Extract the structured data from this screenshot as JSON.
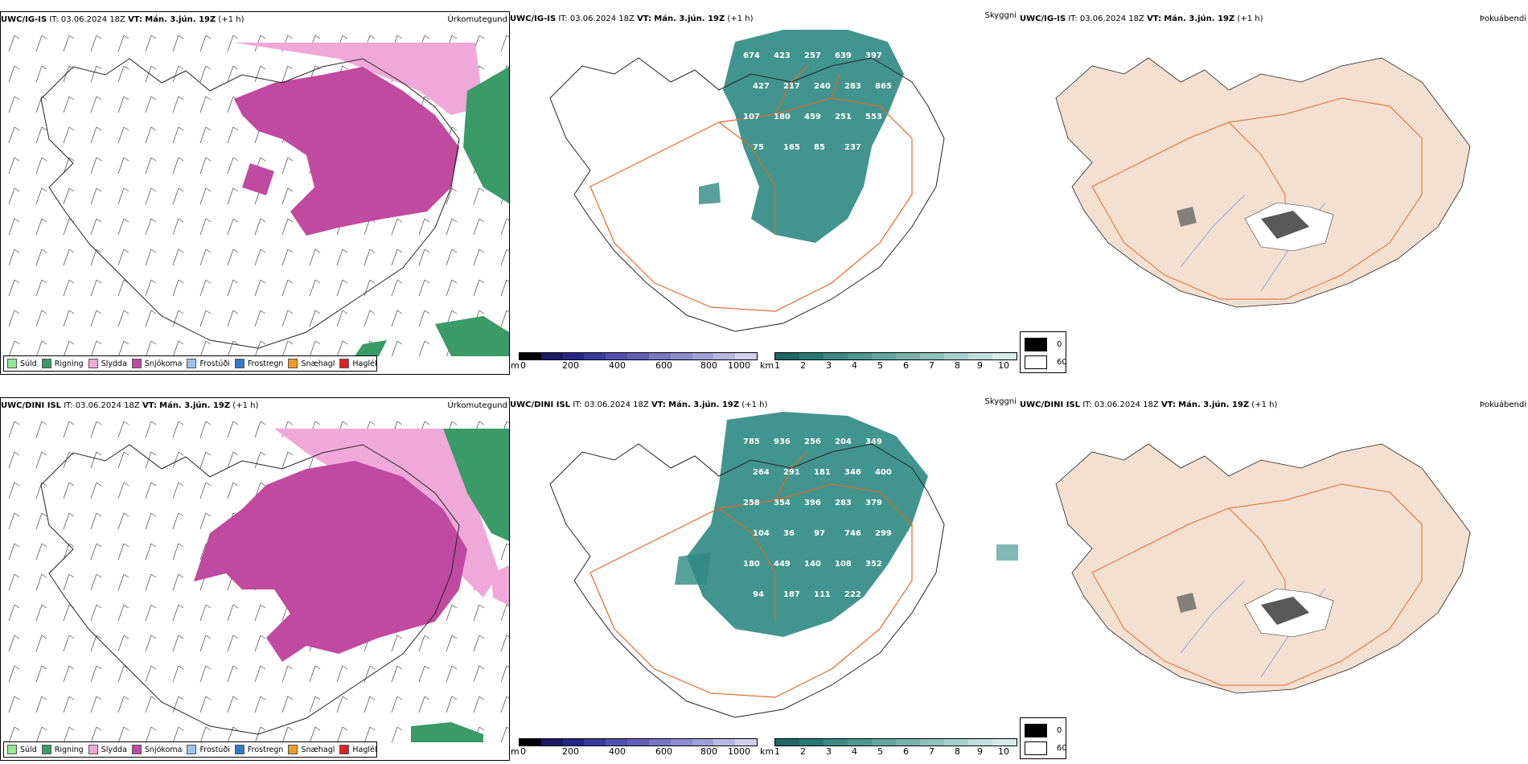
{
  "colors": {
    "snow": "#c04aa0",
    "sleet": "#f0a8d8",
    "rain": "#3a9a68",
    "drizzle": "#90e890",
    "freezing_drizzle": "#9ac4f0",
    "freezing_rain": "#3478c8",
    "snow_grains": "#f09820",
    "hail": "#e02020",
    "cloud": "#2e8a82",
    "land": "#f3e0d0",
    "roads": "#e06a2a",
    "rivers": "#7a9ae0"
  },
  "rows": [
    {
      "model": "UWC/IG-IS",
      "it_label": "IT:",
      "it_value": "03.06.2024 18Z",
      "vt_label": "VT:",
      "vt_value": "Mán. 3.jún. 19Z",
      "lead": "(+1 h)",
      "panels": {
        "precip": {
          "title": "Úrkomutegund"
        },
        "visibility": {
          "title": "Skyggni",
          "labels": [
            "674",
            "423",
            "257",
            "639",
            "397",
            "427",
            "217",
            "240",
            "283",
            "865",
            "107",
            "180",
            "459",
            "251",
            "553",
            "75",
            "165",
            "85",
            "237"
          ]
        },
        "cloud": {
          "title": "Þokuábendi"
        }
      }
    },
    {
      "model": "UWC/DINI ISL",
      "it_label": "IT:",
      "it_value": "03.06.2024 18Z",
      "vt_label": "VT:",
      "vt_value": "Mán. 3.jún. 19Z",
      "lead": "(+1 h)",
      "panels": {
        "precip": {
          "title": "Úrkomutegund"
        },
        "visibility": {
          "title": "Skyggni",
          "labels": [
            "785",
            "936",
            "256",
            "204",
            "349",
            "264",
            "291",
            "181",
            "346",
            "400",
            "258",
            "354",
            "396",
            "283",
            "379",
            "104",
            "36",
            "97",
            "746",
            "299",
            "180",
            "449",
            "140",
            "108",
            "352",
            "94",
            "187",
            "111",
            "222"
          ]
        },
        "cloud": {
          "title": "Þokuábendi"
        }
      }
    }
  ],
  "precip_legend": [
    {
      "label": "Súld",
      "color": "#90e890"
    },
    {
      "label": "Rigning",
      "color": "#3a9a68"
    },
    {
      "label": "Slydda",
      "color": "#f0a8d8"
    },
    {
      "label": "Snjókoma",
      "color": "#c04aa0"
    },
    {
      "label": "Frostúði",
      "color": "#9ac4f0"
    },
    {
      "label": "Frostregn",
      "color": "#3478c8"
    },
    {
      "label": "Snæhagl",
      "color": "#f09820"
    },
    {
      "label": "Haglél",
      "color": "#e02020"
    }
  ],
  "elev_bar": {
    "unit": "m",
    "ticks": [
      "0",
      "200",
      "400",
      "600",
      "800",
      "1000"
    ],
    "colors": [
      "#000000",
      "#1a1a6a",
      "#26268a",
      "#3a3aa0",
      "#5050b0",
      "#6060b8",
      "#7878c8",
      "#8c8cd0",
      "#a0a0d8",
      "#b8b8e2",
      "#d0d0ec"
    ]
  },
  "km_bar": {
    "unit": "km",
    "ticks": [
      "1",
      "2",
      "3",
      "4",
      "5",
      "6",
      "7",
      "8",
      "9",
      "10"
    ],
    "colors": [
      "#1a6a66",
      "#257a74",
      "#3a8a84",
      "#4e9892",
      "#62a6a0",
      "#78b4ae",
      "#8ec2bc",
      "#a6d0cc",
      "#bededa",
      "#d6ecea"
    ]
  },
  "cloud_legend": {
    "items": [
      "0",
      "60"
    ]
  }
}
